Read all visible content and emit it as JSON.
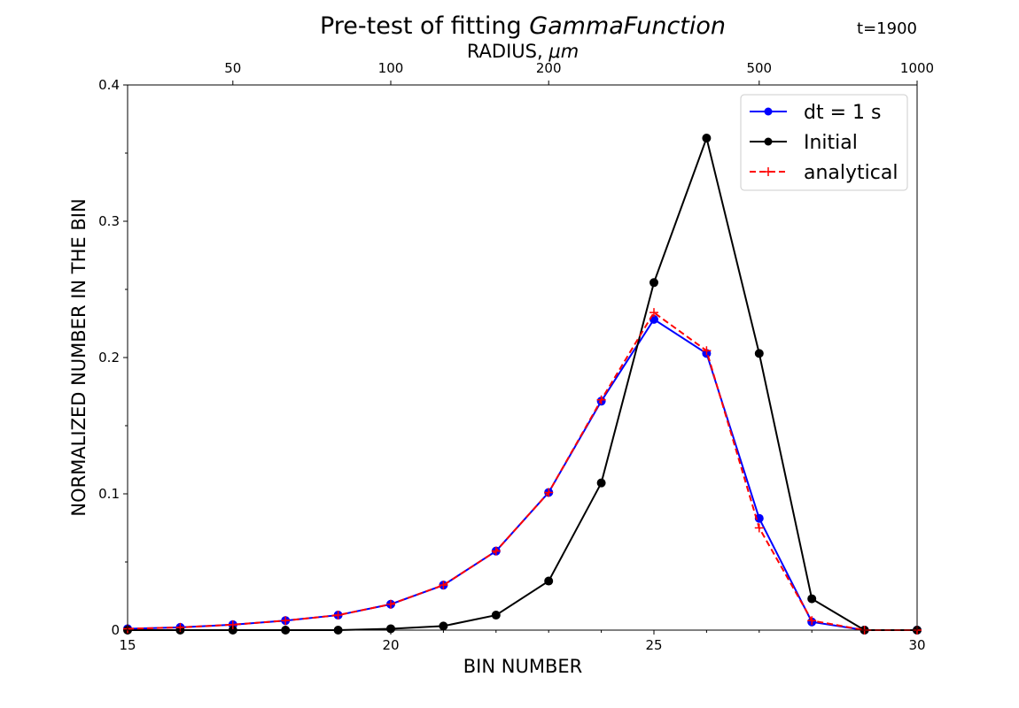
{
  "chart_data": {
    "type": "line",
    "title_prefix": "Pre-test of fitting ",
    "title_italic": "GammaFunction",
    "annotation": "t=1900",
    "xlabel": "BIN NUMBER",
    "ylabel": "NORMALIZED NUMBER IN THE BIN",
    "top_xlabel_prefix": "RADIUS, ",
    "top_xlabel_italic": "μm",
    "xlim": [
      15,
      30
    ],
    "ylim": [
      0,
      0.4
    ],
    "x_ticks": [
      15,
      20,
      25,
      30
    ],
    "x_minor_ticks": [
      16,
      17,
      18,
      19,
      21,
      22,
      23,
      24,
      26,
      27,
      28,
      29
    ],
    "y_ticks": [
      {
        "value": 0,
        "label": "0"
      },
      {
        "value": 0.1,
        "label": "0.1"
      },
      {
        "value": 0.2,
        "label": "0.2"
      },
      {
        "value": 0.3,
        "label": "0.3"
      },
      {
        "value": 0.4,
        "label": "0.4"
      }
    ],
    "y_minor_ticks": [
      0.05,
      0.15,
      0.25,
      0.35
    ],
    "top_ticks": [
      {
        "bin": 17,
        "label": "50"
      },
      {
        "bin": 20,
        "label": "100"
      },
      {
        "bin": 23,
        "label": "200"
      },
      {
        "bin": 27,
        "label": "500"
      },
      {
        "bin": 30,
        "label": "1000"
      }
    ],
    "legend_position": "top-right",
    "series": [
      {
        "name": "dt = 1 s",
        "color": "#0000ff",
        "style": "solid",
        "marker": "circle",
        "x": [
          15,
          16,
          17,
          18,
          19,
          20,
          21,
          22,
          23,
          24,
          25,
          26,
          27,
          28,
          29,
          30
        ],
        "y": [
          0.001,
          0.002,
          0.004,
          0.007,
          0.011,
          0.019,
          0.033,
          0.058,
          0.101,
          0.168,
          0.228,
          0.203,
          0.082,
          0.006,
          0.0,
          0.0
        ]
      },
      {
        "name": "Initial",
        "color": "#000000",
        "style": "solid",
        "marker": "circle",
        "x": [
          15,
          16,
          17,
          18,
          19,
          20,
          21,
          22,
          23,
          24,
          25,
          26,
          27,
          28,
          29,
          30
        ],
        "y": [
          0.0,
          0.0,
          0.0,
          0.0,
          0.0,
          0.001,
          0.003,
          0.011,
          0.036,
          0.108,
          0.255,
          0.361,
          0.203,
          0.023,
          0.0,
          0.0
        ]
      },
      {
        "name": "analytical",
        "color": "#ff0000",
        "style": "dashed",
        "marker": "plus",
        "x": [
          15,
          16,
          17,
          18,
          19,
          20,
          21,
          22,
          23,
          24,
          25,
          26,
          27,
          28,
          29,
          30
        ],
        "y": [
          0.001,
          0.002,
          0.004,
          0.007,
          0.011,
          0.019,
          0.033,
          0.058,
          0.101,
          0.169,
          0.233,
          0.205,
          0.075,
          0.007,
          0.0,
          0.0
        ]
      }
    ]
  }
}
